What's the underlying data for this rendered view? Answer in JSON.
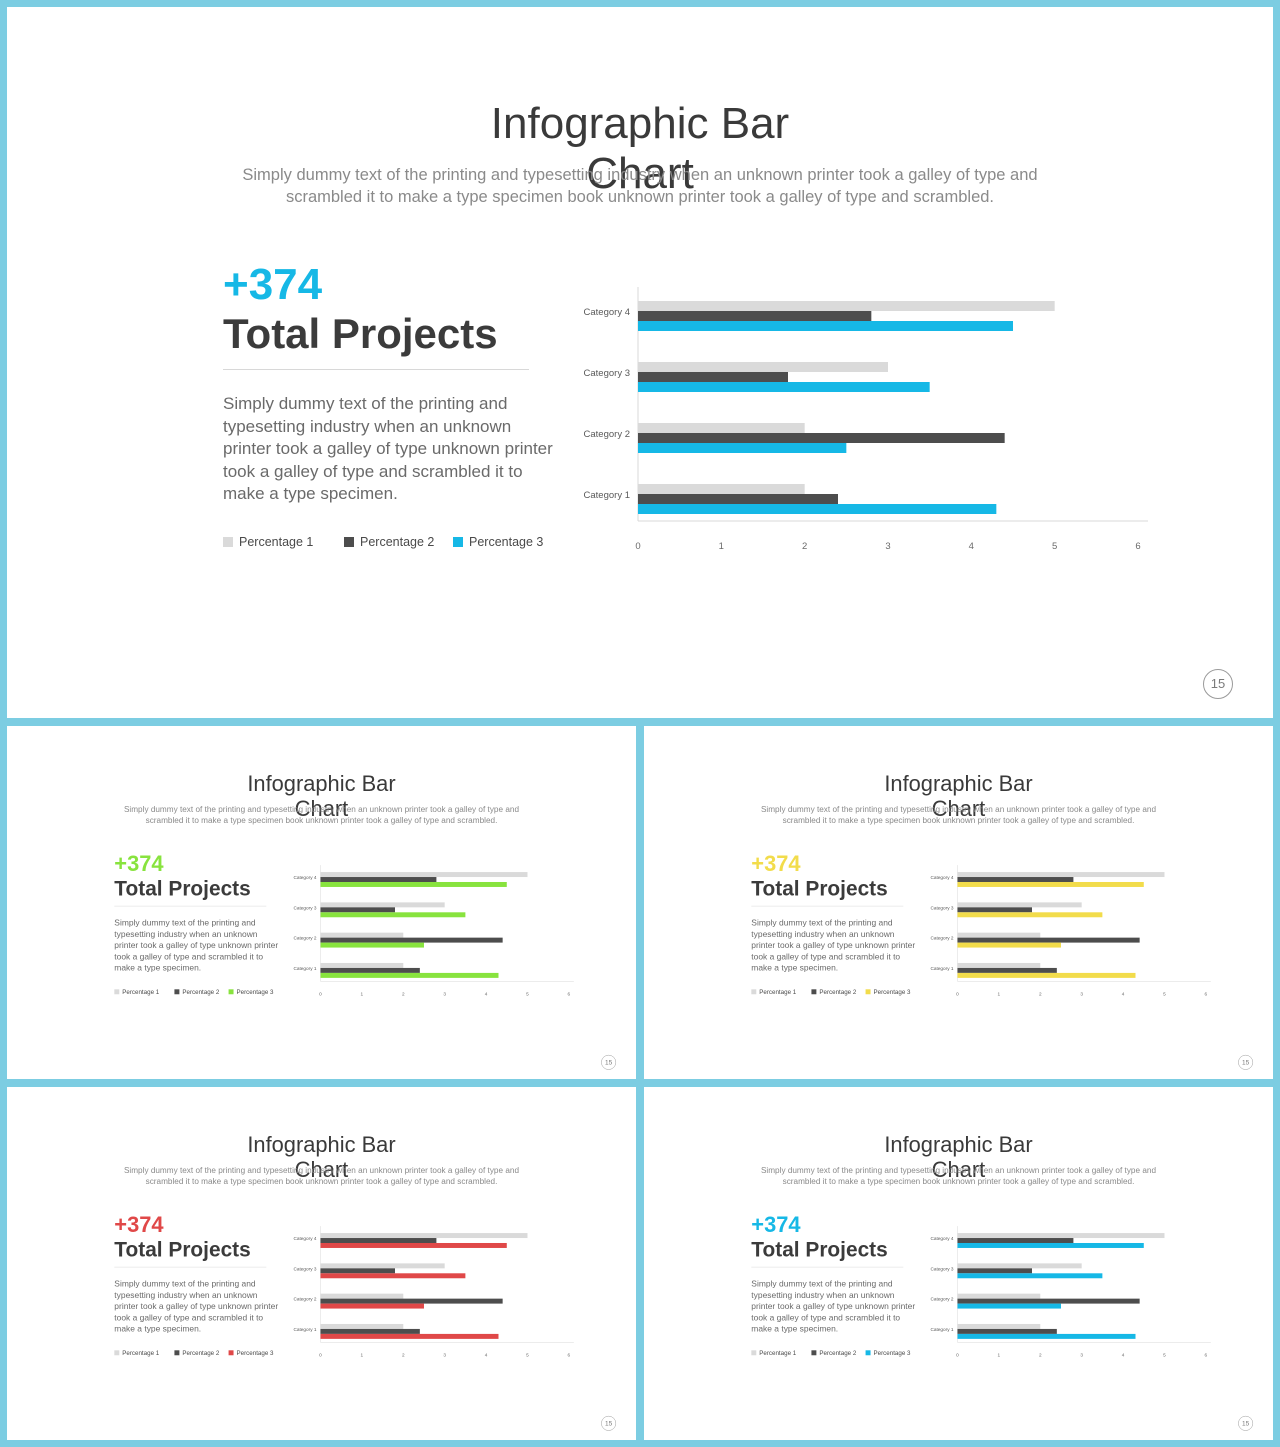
{
  "slide": {
    "title": "Infographic Bar Chart",
    "subtitle": "Simply dummy text of the printing and typesetting industry when an unknown printer took a galley of type and scrambled it to make a type specimen book unknown printer took a galley of type and scrambled.",
    "big_number": "+374",
    "big_label": "Total Projects",
    "body": "Simply dummy text of the printing and typesetting industry when an unknown printer took a galley of type unknown printer took a galley of type and scrambled it to make a type specimen.",
    "page_number": "15",
    "legend": [
      "Percentage 1",
      "Percentage 2",
      "Percentage 3"
    ]
  },
  "variants": [
    {
      "accent": "#16b8e6"
    },
    {
      "accent": "#88e33e"
    },
    {
      "accent": "#f2dc4b"
    },
    {
      "accent": "#e04848"
    },
    {
      "accent": "#16b8e6"
    }
  ],
  "colors": {
    "percentage1": "#dadada",
    "percentage2": "#4d4d4d",
    "background": "#7ccde2"
  },
  "chart_data": {
    "type": "bar",
    "orientation": "horizontal",
    "categories": [
      "Category 1",
      "Category 2",
      "Category 3",
      "Category 4"
    ],
    "series": [
      {
        "name": "Percentage 1",
        "values": [
          2,
          2,
          3,
          5
        ]
      },
      {
        "name": "Percentage 2",
        "values": [
          2.4,
          4.4,
          1.8,
          2.8
        ]
      },
      {
        "name": "Percentage 3",
        "values": [
          4.3,
          2.5,
          3.5,
          4.5
        ]
      }
    ],
    "xlim": [
      0,
      6
    ],
    "xticks": [
      "0",
      "1",
      "2",
      "3",
      "4",
      "5",
      "6"
    ],
    "grid": false,
    "legend_position": "bottom-left"
  }
}
